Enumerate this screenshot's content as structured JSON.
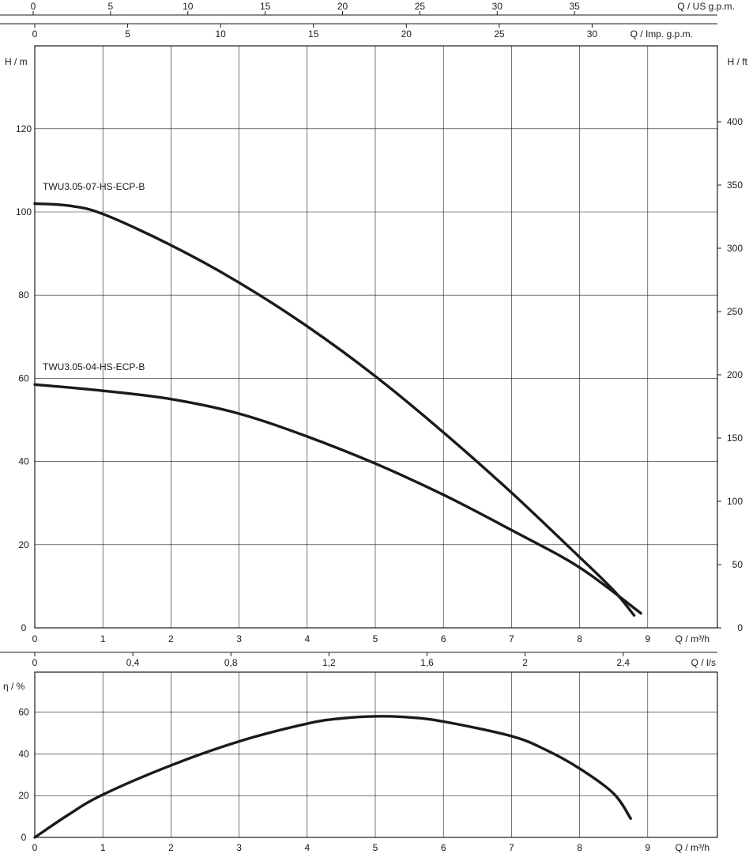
{
  "chart_data": [
    {
      "type": "line",
      "panel": "head",
      "x_unit_label": "Q / m³/h",
      "xlim": [
        0,
        9
      ],
      "x_ticks": [
        "0",
        "1",
        "2",
        "3",
        "4",
        "5",
        "6",
        "7",
        "8",
        "9"
      ],
      "y_left_label": "H / m",
      "ylim": [
        0,
        140
      ],
      "y_left_ticks": [
        "0",
        "20",
        "40",
        "60",
        "80",
        "100",
        "120"
      ],
      "y_right_label": "H / ft",
      "y_right_ticks": [
        "0",
        "50",
        "100",
        "150",
        "200",
        "250",
        "300",
        "350",
        "400"
      ],
      "top_axis_us": {
        "label": "Q / US g.p.m.",
        "ticks": [
          "0",
          "5",
          "10",
          "15",
          "20",
          "25",
          "30",
          "35"
        ]
      },
      "top_axis_imp": {
        "label": "Q / Imp. g.p.m.",
        "ticks": [
          "0",
          "5",
          "10",
          "15",
          "20",
          "25",
          "30"
        ]
      },
      "grid": true,
      "series": [
        {
          "name": "TWU3.05-07-HS-ECP-B",
          "x": [
            0,
            0.5,
            1,
            2,
            3,
            4,
            5,
            6,
            7,
            8,
            8.5,
            8.8
          ],
          "y": [
            102,
            101.5,
            99.5,
            92,
            83,
            72.5,
            60.5,
            47,
            32.5,
            17,
            9,
            3
          ]
        },
        {
          "name": "TWU3.05-04-HS-ECP-B",
          "x": [
            0,
            1,
            2,
            3,
            4,
            5,
            6,
            7,
            8,
            8.9
          ],
          "y": [
            58.5,
            57,
            55,
            51.5,
            46,
            39.5,
            32,
            23.5,
            14.5,
            3.5
          ]
        }
      ]
    },
    {
      "type": "line",
      "panel": "efficiency",
      "x_unit_label": "Q / m³/h",
      "xlim": [
        0,
        9
      ],
      "x_ticks": [
        "0",
        "1",
        "2",
        "3",
        "4",
        "5",
        "6",
        "7",
        "8",
        "9"
      ],
      "y_left_label": "η / %",
      "ylim": [
        0,
        75
      ],
      "y_left_ticks": [
        "0",
        "20",
        "40",
        "60"
      ],
      "top_axis_ls": {
        "label": "Q / l/s",
        "ticks": [
          "0",
          "0,4",
          "0,8",
          "1,2",
          "1,6",
          "2",
          "2,4"
        ]
      },
      "grid": true,
      "series": [
        {
          "x": [
            0,
            0.5,
            1,
            2,
            3,
            4,
            4.5,
            5,
            5.5,
            6,
            7,
            7.5,
            8,
            8.5,
            8.75
          ],
          "y": [
            0,
            11,
            20.5,
            34.5,
            46,
            54.5,
            57,
            58,
            57.5,
            55.5,
            48.5,
            42,
            33,
            21,
            9
          ]
        }
      ]
    }
  ]
}
